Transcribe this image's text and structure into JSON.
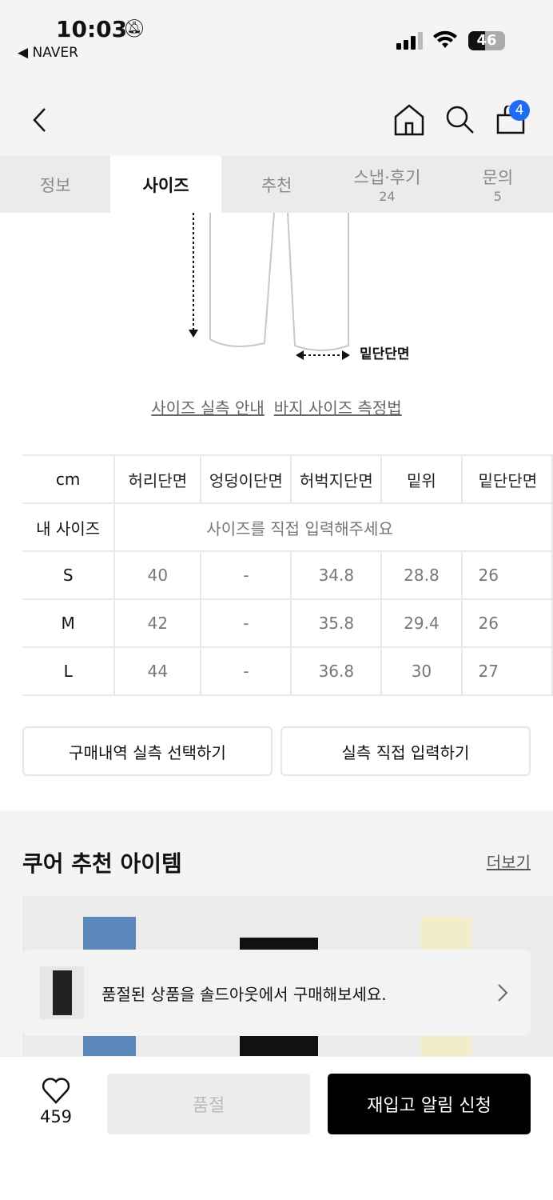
{
  "status_bar": {
    "time": "10:03",
    "back_app": "NAVER",
    "battery": "46"
  },
  "header": {
    "cart_count": "4"
  },
  "tabs": [
    {
      "label": "정보"
    },
    {
      "label": "사이즈",
      "active": true
    },
    {
      "label": "추천"
    },
    {
      "label": "스냅·후기",
      "count": "24"
    },
    {
      "label": "문의",
      "count": "5"
    }
  ],
  "diagram": {
    "label": "밑단단면"
  },
  "links": [
    "사이즈 실측 안내",
    "바지 사이즈 측정법"
  ],
  "size_table": {
    "headers": [
      "cm",
      "허리단면",
      "엉덩이단면",
      "허벅지단면",
      "밑위",
      "밑단단면"
    ],
    "my_size_label": "내 사이즈",
    "my_size_placeholder": "사이즈를 직접 입력해주세요",
    "rows": [
      [
        "S",
        "40",
        "-",
        "34.8",
        "28.8",
        "26"
      ],
      [
        "M",
        "42",
        "-",
        "35.8",
        "29.4",
        "26"
      ],
      [
        "L",
        "44",
        "-",
        "36.8",
        "30",
        "27"
      ]
    ]
  },
  "buttons": {
    "purchase_history": "구매내역 실측 선택하기",
    "manual_input": "실측 직접 입력하기"
  },
  "recommend": {
    "title": "쿠어 추천 아이템",
    "more": "더보기"
  },
  "toast": {
    "text": "품절된 상품을 솔드아웃에서 구매해보세요."
  },
  "bottom": {
    "like_count": "459",
    "soldout": "품절",
    "restock": "재입고 알림 신청"
  },
  "colors": {
    "badge": "#1f6bf5",
    "primary": "#000000"
  }
}
